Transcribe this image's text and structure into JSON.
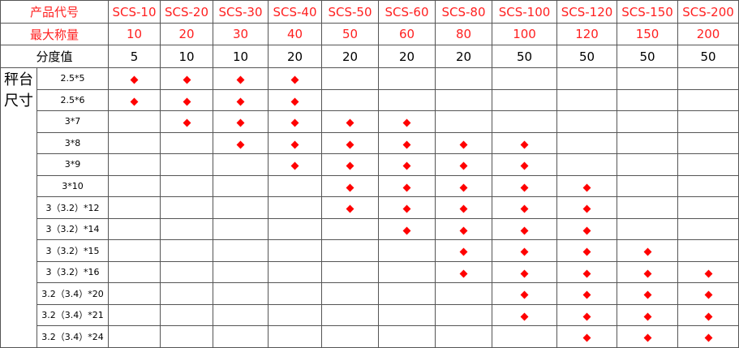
{
  "header": {
    "model_label": "产品代号",
    "capacity_label": "最大称量",
    "division_label": "分度值",
    "models": [
      "SCS-10",
      "SCS-20",
      "SCS-30",
      "SCS-40",
      "SCS-50",
      "SCS-60",
      "SCS-80",
      "SCS-100",
      "SCS-120",
      "SCS-150",
      "SCS-200"
    ],
    "capacities": [
      "10",
      "20",
      "30",
      "40",
      "50",
      "60",
      "80",
      "100",
      "120",
      "150",
      "200"
    ],
    "divisions": [
      "5",
      "10",
      "10",
      "20",
      "20",
      "20",
      "20",
      "50",
      "50",
      "50",
      "50"
    ]
  },
  "platform_label": "秤台尺寸",
  "marker_icon": "red-diamond",
  "marker_color": "#ff0000",
  "sizes": [
    {
      "label": "2.5*5",
      "available": [
        "SCS-10",
        "SCS-20",
        "SCS-30",
        "SCS-40"
      ]
    },
    {
      "label": "2.5*6",
      "available": [
        "SCS-10",
        "SCS-20",
        "SCS-30",
        "SCS-40"
      ]
    },
    {
      "label": "3*7",
      "available": [
        "SCS-20",
        "SCS-30",
        "SCS-40",
        "SCS-50",
        "SCS-60"
      ]
    },
    {
      "label": "3*8",
      "available": [
        "SCS-30",
        "SCS-40",
        "SCS-50",
        "SCS-60",
        "SCS-80",
        "SCS-100"
      ]
    },
    {
      "label": "3*9",
      "available": [
        "SCS-40",
        "SCS-50",
        "SCS-60",
        "SCS-80",
        "SCS-100"
      ]
    },
    {
      "label": "3*10",
      "available": [
        "SCS-50",
        "SCS-60",
        "SCS-80",
        "SCS-100",
        "SCS-120"
      ]
    },
    {
      "label": "3（3.2）*12",
      "available": [
        "SCS-50",
        "SCS-60",
        "SCS-80",
        "SCS-100",
        "SCS-120"
      ]
    },
    {
      "label": "3（3.2）*14",
      "available": [
        "SCS-60",
        "SCS-80",
        "SCS-100",
        "SCS-120"
      ]
    },
    {
      "label": "3（3.2）*15",
      "available": [
        "SCS-80",
        "SCS-100",
        "SCS-120",
        "SCS-150"
      ]
    },
    {
      "label": "3（3.2）*16",
      "available": [
        "SCS-80",
        "SCS-100",
        "SCS-120",
        "SCS-150",
        "SCS-200"
      ]
    },
    {
      "label": "3.2（3.4）*20",
      "available": [
        "SCS-100",
        "SCS-120",
        "SCS-150",
        "SCS-200"
      ]
    },
    {
      "label": "3.2（3.4）*21",
      "available": [
        "SCS-100",
        "SCS-120",
        "SCS-150",
        "SCS-200"
      ]
    },
    {
      "label": "3.2（3.4）*24",
      "available": [
        "SCS-120",
        "SCS-150",
        "SCS-200"
      ]
    }
  ]
}
